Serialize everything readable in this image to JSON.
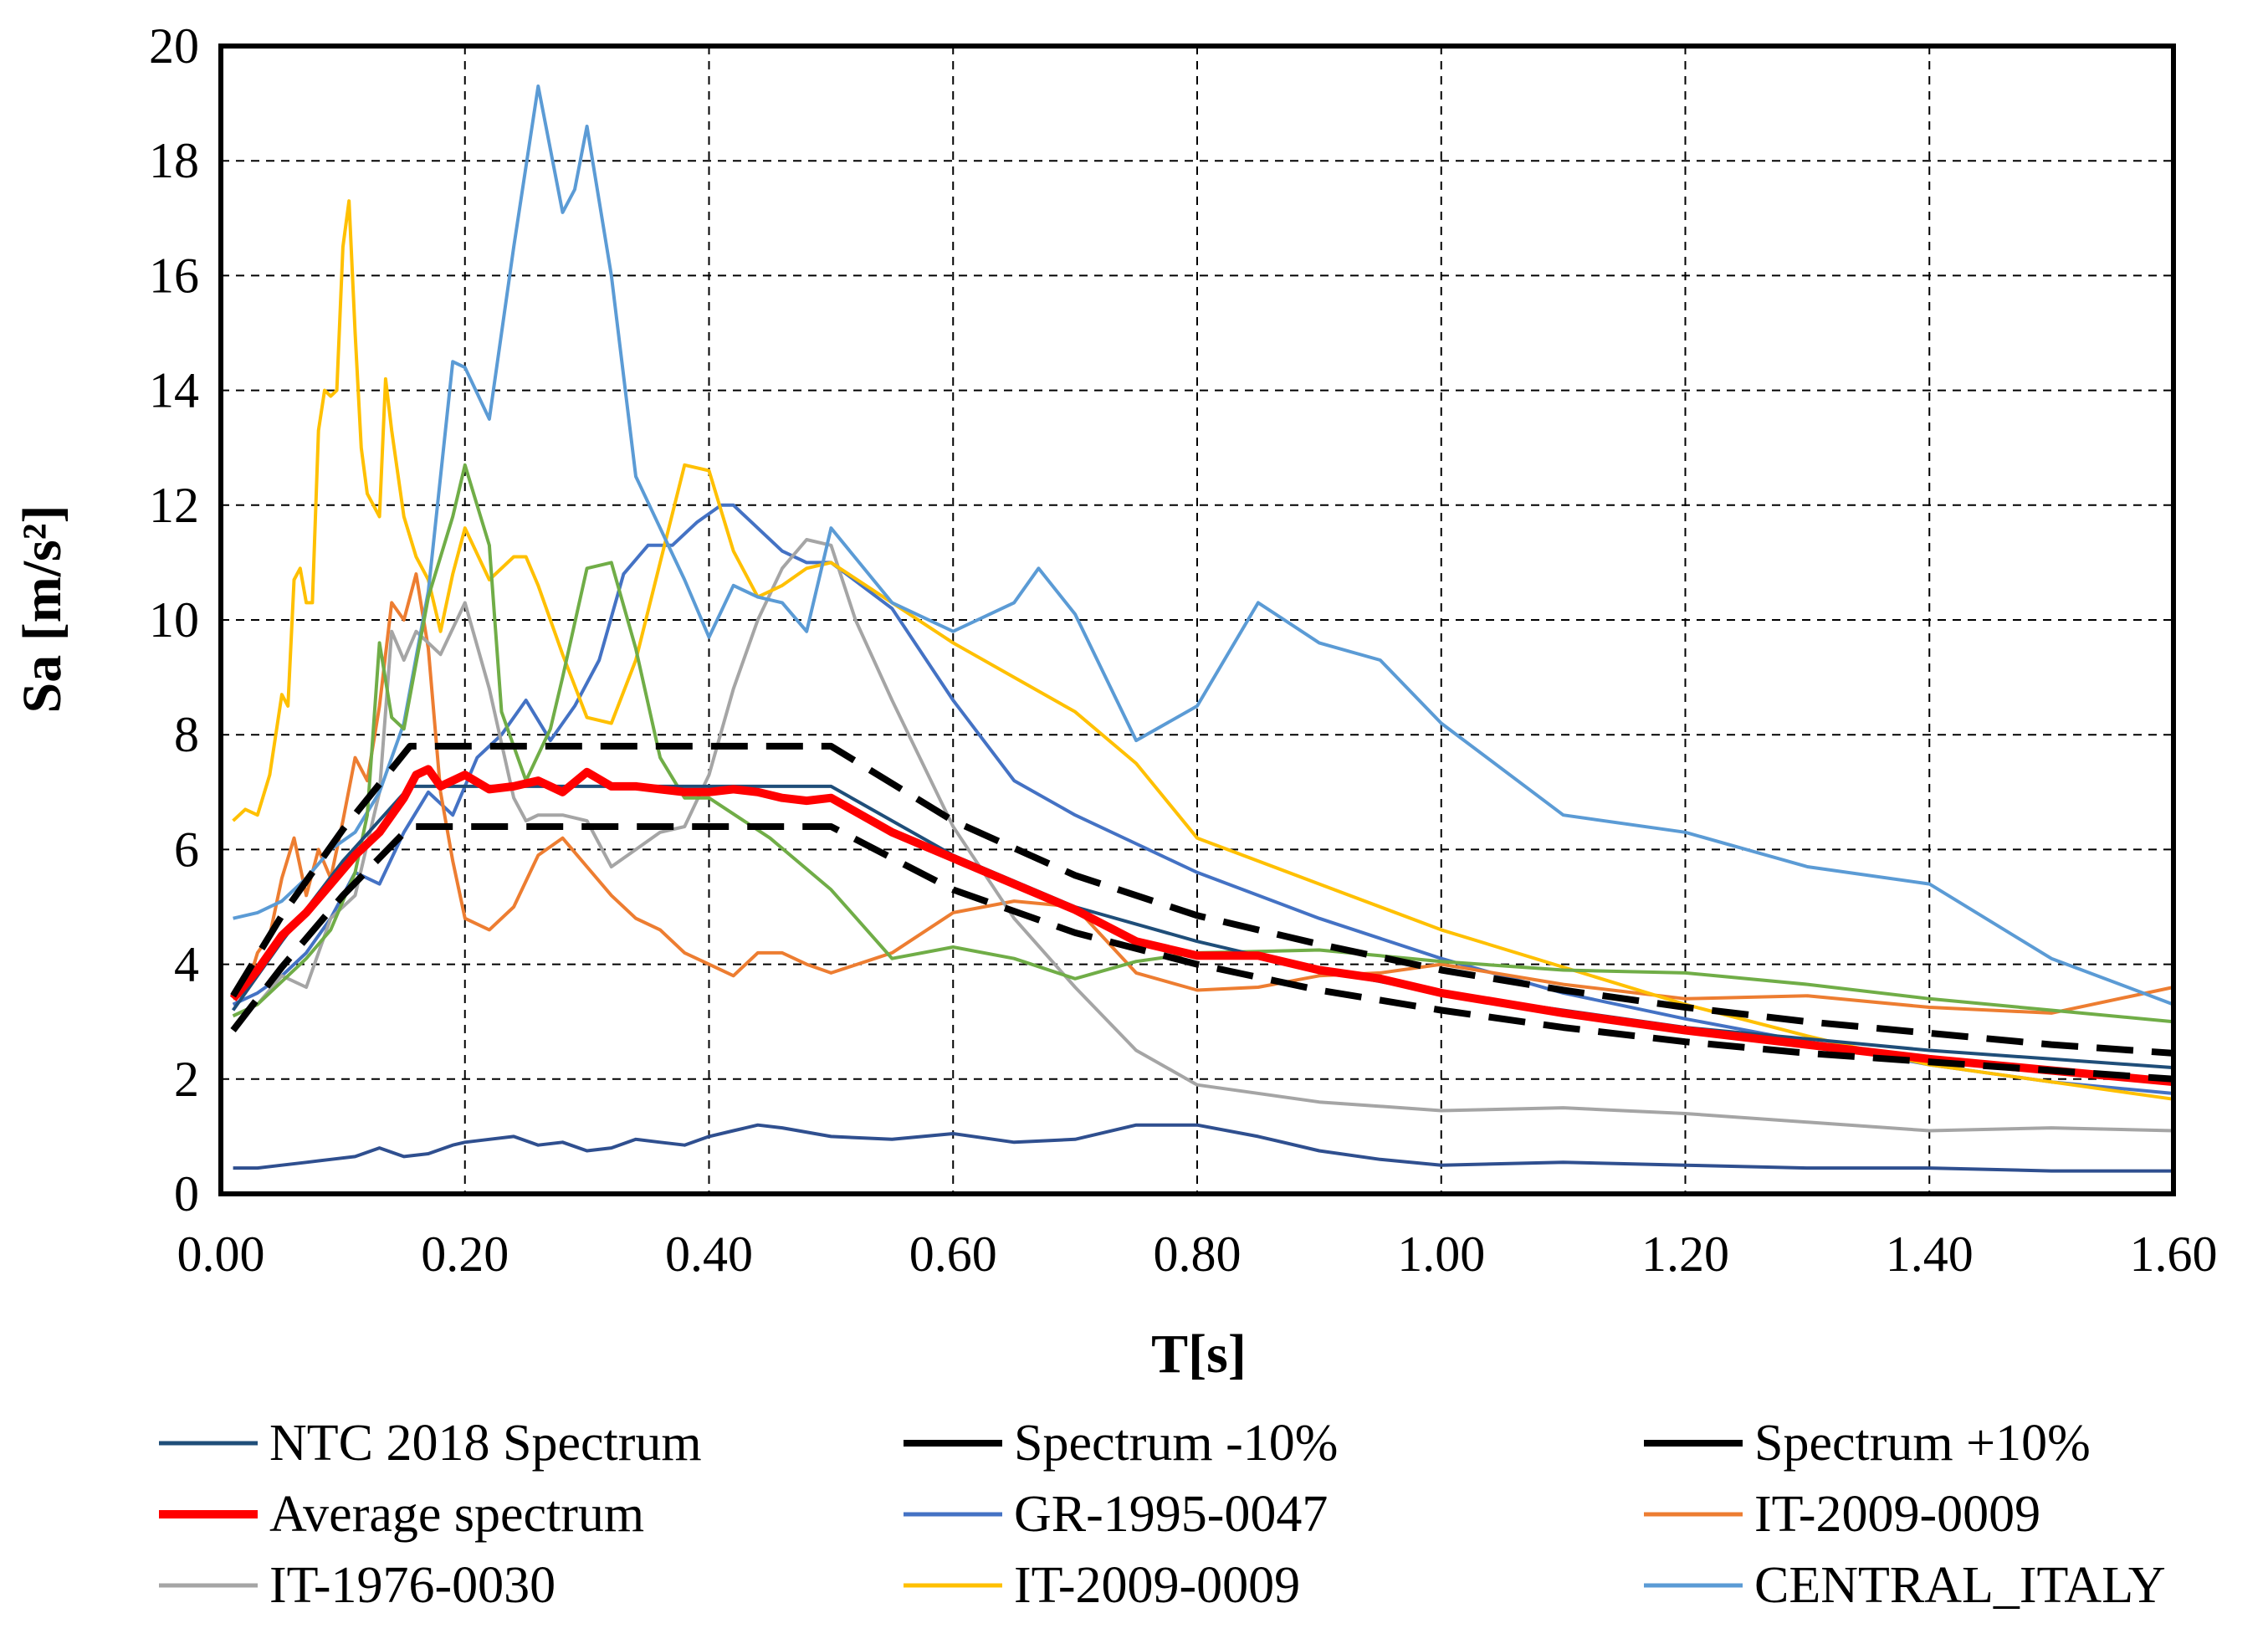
{
  "chart_data": {
    "type": "line",
    "title": "",
    "xlabel": "T[s]",
    "ylabel": "Sa [m/s²]",
    "xlim": [
      0,
      1.6
    ],
    "ylim": [
      0,
      20
    ],
    "grid": true,
    "legend_position": "bottom",
    "x_ticks": [
      0,
      0.2,
      0.4,
      0.6,
      0.8,
      1.0,
      1.2,
      1.4,
      1.6
    ],
    "x_tick_labels": [
      "0.00",
      "0.20",
      "0.40",
      "0.60",
      "0.80",
      "1.00",
      "1.20",
      "1.40",
      "1.60"
    ],
    "y_ticks": [
      0,
      2,
      4,
      6,
      8,
      10,
      12,
      14,
      16,
      18,
      20
    ],
    "y_tick_labels": [
      "0",
      "2",
      "4",
      "6",
      "8",
      "10",
      "12",
      "14",
      "16",
      "18",
      "20"
    ],
    "series": [
      {
        "name": "NTC 2018 Spectrum",
        "color": "#1f4e79",
        "style": "solid",
        "weight": "thin",
        "x": [
          0.01,
          0.05,
          0.1,
          0.155,
          0.5,
          0.6,
          0.7,
          0.8,
          0.9,
          1.0,
          1.1,
          1.2,
          1.3,
          1.4,
          1.5,
          1.6
        ],
        "y": [
          3.2,
          4.4,
          5.8,
          7.1,
          7.1,
          5.9,
          5.0,
          4.4,
          3.9,
          3.5,
          3.2,
          2.9,
          2.7,
          2.5,
          2.35,
          2.2
        ]
      },
      {
        "name": "Spectrum -10%",
        "color": "#000000",
        "style": "dashed",
        "weight": "thick",
        "x": [
          0.01,
          0.05,
          0.1,
          0.155,
          0.5,
          0.6,
          0.7,
          0.8,
          0.9,
          1.0,
          1.1,
          1.2,
          1.3,
          1.4,
          1.5,
          1.6
        ],
        "y": [
          2.85,
          3.95,
          5.2,
          6.4,
          6.4,
          5.3,
          4.55,
          4.0,
          3.55,
          3.2,
          2.9,
          2.65,
          2.45,
          2.3,
          2.15,
          2.0
        ]
      },
      {
        "name": "Spectrum +10%",
        "color": "#000000",
        "style": "dashed",
        "weight": "thick",
        "x": [
          0.01,
          0.05,
          0.1,
          0.155,
          0.5,
          0.6,
          0.7,
          0.8,
          0.9,
          1.0,
          1.1,
          1.2,
          1.3,
          1.4,
          1.5,
          1.6
        ],
        "y": [
          3.45,
          4.85,
          6.35,
          7.8,
          7.8,
          6.5,
          5.55,
          4.85,
          4.35,
          3.9,
          3.55,
          3.25,
          3.0,
          2.8,
          2.6,
          2.45
        ]
      },
      {
        "name": "Average spectrum",
        "color": "#ff0000",
        "style": "solid",
        "weight": "bold",
        "x": [
          0.01,
          0.03,
          0.05,
          0.07,
          0.09,
          0.11,
          0.13,
          0.15,
          0.16,
          0.17,
          0.18,
          0.2,
          0.22,
          0.24,
          0.26,
          0.28,
          0.3,
          0.32,
          0.34,
          0.36,
          0.38,
          0.4,
          0.42,
          0.44,
          0.46,
          0.48,
          0.5,
          0.55,
          0.6,
          0.65,
          0.7,
          0.75,
          0.8,
          0.85,
          0.9,
          0.95,
          1.0,
          1.1,
          1.2,
          1.3,
          1.4,
          1.5,
          1.6
        ],
        "y": [
          3.4,
          3.9,
          4.5,
          4.9,
          5.4,
          5.9,
          6.3,
          6.9,
          7.3,
          7.4,
          7.1,
          7.3,
          7.05,
          7.1,
          7.2,
          7.0,
          7.35,
          7.1,
          7.1,
          7.05,
          7.0,
          7.0,
          7.05,
          7.0,
          6.9,
          6.85,
          6.9,
          6.3,
          5.85,
          5.4,
          4.95,
          4.4,
          4.15,
          4.15,
          3.9,
          3.75,
          3.5,
          3.15,
          2.85,
          2.6,
          2.35,
          2.15,
          1.95
        ]
      },
      {
        "name": "GR-1995-0047",
        "color": "#4472c4",
        "style": "solid",
        "weight": "thin",
        "x": [
          0.01,
          0.03,
          0.05,
          0.07,
          0.09,
          0.11,
          0.13,
          0.15,
          0.17,
          0.19,
          0.21,
          0.23,
          0.25,
          0.27,
          0.29,
          0.31,
          0.33,
          0.35,
          0.37,
          0.39,
          0.41,
          0.42,
          0.44,
          0.46,
          0.48,
          0.5,
          0.55,
          0.6,
          0.65,
          0.7,
          0.75,
          0.8,
          0.9,
          1.0,
          1.1,
          1.2,
          1.3,
          1.4,
          1.5,
          1.6
        ],
        "y": [
          3.3,
          3.5,
          3.8,
          4.2,
          4.8,
          5.6,
          5.4,
          6.3,
          7.0,
          6.6,
          7.6,
          8.0,
          8.6,
          7.9,
          8.5,
          9.3,
          10.8,
          11.3,
          11.3,
          11.7,
          12.0,
          12.0,
          11.6,
          11.2,
          11.0,
          11.0,
          10.2,
          8.6,
          7.2,
          6.6,
          6.1,
          5.6,
          4.8,
          4.1,
          3.5,
          3.05,
          2.65,
          2.25,
          1.95,
          1.75
        ]
      },
      {
        "name": "IT-2009-0009",
        "color": "#ed7d31",
        "style": "solid",
        "weight": "thin",
        "x": [
          0.01,
          0.02,
          0.03,
          0.04,
          0.05,
          0.06,
          0.07,
          0.08,
          0.09,
          0.1,
          0.11,
          0.12,
          0.13,
          0.14,
          0.15,
          0.16,
          0.17,
          0.18,
          0.19,
          0.2,
          0.22,
          0.24,
          0.26,
          0.28,
          0.3,
          0.32,
          0.34,
          0.36,
          0.38,
          0.4,
          0.42,
          0.44,
          0.46,
          0.48,
          0.5,
          0.55,
          0.6,
          0.65,
          0.7,
          0.75,
          0.8,
          0.85,
          0.9,
          0.95,
          1.0,
          1.1,
          1.2,
          1.3,
          1.4,
          1.5,
          1.6
        ],
        "y": [
          3.4,
          3.5,
          4.2,
          4.5,
          5.5,
          6.2,
          5.2,
          6.0,
          5.5,
          6.5,
          7.6,
          7.2,
          8.5,
          10.3,
          10.0,
          10.8,
          9.5,
          7.0,
          5.8,
          4.8,
          4.6,
          5.0,
          5.9,
          6.2,
          5.7,
          5.2,
          4.8,
          4.6,
          4.2,
          4.0,
          3.8,
          4.2,
          4.2,
          4.0,
          3.85,
          4.2,
          4.9,
          5.1,
          5.0,
          3.85,
          3.55,
          3.6,
          3.8,
          3.85,
          4.0,
          3.65,
          3.4,
          3.45,
          3.25,
          3.15,
          3.6
        ]
      },
      {
        "name": "IT-1976-0030",
        "color": "#a5a5a5",
        "style": "solid",
        "weight": "thin",
        "x": [
          0.01,
          0.03,
          0.05,
          0.07,
          0.09,
          0.11,
          0.13,
          0.14,
          0.15,
          0.16,
          0.18,
          0.2,
          0.22,
          0.24,
          0.25,
          0.26,
          0.28,
          0.3,
          0.32,
          0.34,
          0.36,
          0.38,
          0.4,
          0.42,
          0.44,
          0.46,
          0.48,
          0.5,
          0.52,
          0.55,
          0.6,
          0.65,
          0.7,
          0.75,
          0.8,
          0.9,
          1.0,
          1.1,
          1.2,
          1.3,
          1.4,
          1.5,
          1.6
        ],
        "y": [
          3.1,
          3.3,
          3.8,
          3.6,
          4.8,
          5.2,
          7.0,
          9.8,
          9.3,
          9.8,
          9.4,
          10.3,
          8.8,
          6.9,
          6.5,
          6.6,
          6.6,
          6.5,
          5.7,
          6.0,
          6.3,
          6.4,
          7.3,
          8.8,
          10.0,
          10.9,
          11.4,
          11.3,
          10.0,
          8.6,
          6.4,
          4.8,
          3.6,
          2.5,
          1.9,
          1.6,
          1.45,
          1.5,
          1.4,
          1.25,
          1.1,
          1.15,
          1.1
        ]
      },
      {
        "name": "IT-2009-0009",
        "color": "#ffc000",
        "style": "solid",
        "weight": "thin",
        "x": [
          0.01,
          0.02,
          0.03,
          0.04,
          0.05,
          0.055,
          0.06,
          0.065,
          0.07,
          0.075,
          0.08,
          0.085,
          0.09,
          0.095,
          0.1,
          0.105,
          0.11,
          0.115,
          0.12,
          0.13,
          0.135,
          0.14,
          0.15,
          0.16,
          0.17,
          0.18,
          0.19,
          0.2,
          0.22,
          0.24,
          0.25,
          0.26,
          0.28,
          0.3,
          0.32,
          0.34,
          0.36,
          0.38,
          0.4,
          0.42,
          0.44,
          0.46,
          0.48,
          0.5,
          0.55,
          0.6,
          0.65,
          0.7,
          0.75,
          0.8,
          0.9,
          1.0,
          1.1,
          1.2,
          1.3,
          1.4,
          1.5,
          1.6
        ],
        "y": [
          6.5,
          6.7,
          6.6,
          7.3,
          8.7,
          8.5,
          10.7,
          10.9,
          10.3,
          10.3,
          13.3,
          14.0,
          13.9,
          14.0,
          16.5,
          17.3,
          15.0,
          13.0,
          12.2,
          11.8,
          14.2,
          13.3,
          11.8,
          11.1,
          10.7,
          9.8,
          10.8,
          11.6,
          10.7,
          11.1,
          11.1,
          10.6,
          9.4,
          8.3,
          8.2,
          9.3,
          11.0,
          12.7,
          12.6,
          11.2,
          10.4,
          10.6,
          10.9,
          11.0,
          10.3,
          9.6,
          9.0,
          8.4,
          7.5,
          6.2,
          5.4,
          4.6,
          3.95,
          3.3,
          2.75,
          2.25,
          1.95,
          1.65
        ]
      },
      {
        "name": "CENTRAL_ITALY",
        "color": "#5b9bd5",
        "style": "solid",
        "weight": "thin",
        "x": [
          0.01,
          0.03,
          0.05,
          0.07,
          0.09,
          0.11,
          0.13,
          0.15,
          0.17,
          0.19,
          0.2,
          0.22,
          0.24,
          0.26,
          0.28,
          0.29,
          0.3,
          0.32,
          0.34,
          0.36,
          0.38,
          0.4,
          0.42,
          0.44,
          0.46,
          0.48,
          0.5,
          0.55,
          0.6,
          0.65,
          0.67,
          0.7,
          0.75,
          0.8,
          0.85,
          0.9,
          0.95,
          1.0,
          1.1,
          1.2,
          1.3,
          1.4,
          1.5,
          1.6
        ],
        "y": [
          4.8,
          4.9,
          5.1,
          5.5,
          6.0,
          6.3,
          7.0,
          8.2,
          10.5,
          14.5,
          14.4,
          13.5,
          16.5,
          19.3,
          17.1,
          17.5,
          18.6,
          16.0,
          12.5,
          11.6,
          10.7,
          9.7,
          10.6,
          10.4,
          10.3,
          9.8,
          11.6,
          10.3,
          9.8,
          10.3,
          10.9,
          10.1,
          7.9,
          8.5,
          10.3,
          9.6,
          9.3,
          8.2,
          6.6,
          6.3,
          5.7,
          5.4,
          4.1,
          3.3
        ]
      },
      {
        "name": "",
        "color": "#70ad47",
        "style": "solid",
        "weight": "thin",
        "x": [
          0.01,
          0.03,
          0.05,
          0.07,
          0.09,
          0.11,
          0.12,
          0.13,
          0.14,
          0.15,
          0.17,
          0.19,
          0.2,
          0.21,
          0.22,
          0.23,
          0.25,
          0.27,
          0.28,
          0.3,
          0.32,
          0.34,
          0.36,
          0.38,
          0.4,
          0.45,
          0.5,
          0.55,
          0.6,
          0.65,
          0.7,
          0.75,
          0.8,
          0.9,
          1.0,
          1.1,
          1.2,
          1.3,
          1.4,
          1.5,
          1.6
        ],
        "y": [
          3.1,
          3.3,
          3.7,
          4.1,
          4.6,
          5.6,
          6.6,
          9.6,
          8.3,
          8.1,
          10.4,
          11.8,
          12.7,
          12.0,
          11.3,
          8.4,
          7.2,
          8.1,
          9.0,
          10.9,
          11.0,
          9.5,
          7.6,
          6.9,
          6.9,
          6.2,
          5.3,
          4.1,
          4.3,
          4.1,
          3.75,
          4.05,
          4.2,
          4.25,
          4.05,
          3.9,
          3.85,
          3.65,
          3.4,
          3.2,
          3.0
        ]
      }
    ],
    "legend": [
      {
        "label": "NTC 2018 Spectrum",
        "color": "#1f4e79",
        "style": "solid",
        "weight": "thin"
      },
      {
        "label": "Spectrum -10%",
        "color": "#000000",
        "style": "solid",
        "weight": "thick"
      },
      {
        "label": "Spectrum +10%",
        "color": "#000000",
        "style": "solid",
        "weight": "thick"
      },
      {
        "label": "Average spectrum",
        "color": "#ff0000",
        "style": "solid",
        "weight": "bold"
      },
      {
        "label": "GR-1995-0047",
        "color": "#4472c4",
        "style": "solid",
        "weight": "thin"
      },
      {
        "label": "IT-2009-0009",
        "color": "#ed7d31",
        "style": "solid",
        "weight": "thin"
      },
      {
        "label": "IT-1976-0030",
        "color": "#a5a5a5",
        "style": "solid",
        "weight": "thin"
      },
      {
        "label": "IT-2009-0009",
        "color": "#ffc000",
        "style": "solid",
        "weight": "thin"
      },
      {
        "label": "CENTRAL_ITALY",
        "color": "#5b9bd5",
        "style": "solid",
        "weight": "thin"
      }
    ],
    "extra_series": [
      {
        "name": "",
        "color": "#2f4f8f",
        "style": "solid",
        "weight": "thin",
        "x": [
          0.01,
          0.03,
          0.05,
          0.07,
          0.09,
          0.11,
          0.13,
          0.15,
          0.17,
          0.19,
          0.2,
          0.22,
          0.24,
          0.26,
          0.28,
          0.3,
          0.32,
          0.34,
          0.36,
          0.38,
          0.4,
          0.42,
          0.44,
          0.46,
          0.5,
          0.55,
          0.6,
          0.65,
          0.7,
          0.75,
          0.8,
          0.85,
          0.9,
          0.95,
          1.0,
          1.1,
          1.2,
          1.3,
          1.4,
          1.5,
          1.6
        ],
        "y": [
          0.45,
          0.45,
          0.5,
          0.55,
          0.6,
          0.65,
          0.8,
          0.65,
          0.7,
          0.85,
          0.9,
          0.95,
          1.0,
          0.85,
          0.9,
          0.75,
          0.8,
          0.95,
          0.9,
          0.85,
          1.0,
          1.1,
          1.2,
          1.15,
          1.0,
          0.95,
          1.05,
          0.9,
          0.95,
          1.2,
          1.2,
          1.0,
          0.75,
          0.6,
          0.5,
          0.55,
          0.5,
          0.45,
          0.45,
          0.4,
          0.4
        ]
      }
    ]
  }
}
